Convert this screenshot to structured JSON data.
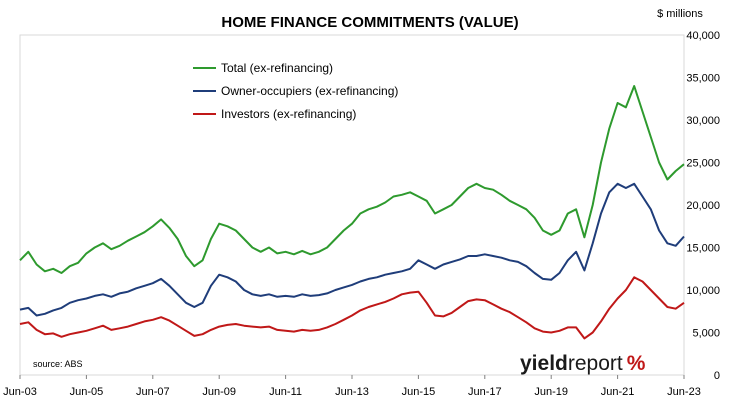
{
  "chart_data": {
    "type": "line",
    "title": "HOME FINANCE COMMITMENTS (VALUE)",
    "units_label": "$ millions",
    "source": "source: ABS",
    "logo": "yieldreport %",
    "ylim": [
      0,
      40000
    ],
    "y_ticks": [
      0,
      5000,
      10000,
      15000,
      20000,
      25000,
      30000,
      35000,
      40000
    ],
    "y_tick_labels": [
      "0",
      "5,000",
      "10,000",
      "15,000",
      "20,000",
      "25,000",
      "30,000",
      "35,000",
      "40,000"
    ],
    "x_ticks": [
      "2003-06",
      "2005-06",
      "2007-06",
      "2009-06",
      "2011-06",
      "2013-06",
      "2015-06",
      "2017-06",
      "2019-06",
      "2021-06",
      "2023-06"
    ],
    "x_tick_labels": [
      "Jun-03",
      "Jun-05",
      "Jun-07",
      "Jun-09",
      "Jun-11",
      "Jun-13",
      "Jun-15",
      "Jun-17",
      "Jun-19",
      "Jun-21",
      "Jun-23"
    ],
    "grid": "none",
    "legend_position": "top-left",
    "series": [
      {
        "name": "Total (ex-refinancing)",
        "color": "#2e9a2e",
        "points": [
          [
            "2003-06",
            13500
          ],
          [
            "2003-09",
            14500
          ],
          [
            "2003-12",
            13000
          ],
          [
            "2004-03",
            12200
          ],
          [
            "2004-06",
            12500
          ],
          [
            "2004-09",
            12000
          ],
          [
            "2004-12",
            12800
          ],
          [
            "2005-03",
            13200
          ],
          [
            "2005-06",
            14300
          ],
          [
            "2005-09",
            15000
          ],
          [
            "2005-12",
            15500
          ],
          [
            "2006-03",
            14800
          ],
          [
            "2006-06",
            15200
          ],
          [
            "2006-09",
            15800
          ],
          [
            "2006-12",
            16300
          ],
          [
            "2007-03",
            16800
          ],
          [
            "2007-06",
            17500
          ],
          [
            "2007-09",
            18300
          ],
          [
            "2007-12",
            17300
          ],
          [
            "2008-03",
            16000
          ],
          [
            "2008-06",
            14000
          ],
          [
            "2008-09",
            12800
          ],
          [
            "2008-12",
            13500
          ],
          [
            "2009-03",
            16000
          ],
          [
            "2009-06",
            17800
          ],
          [
            "2009-09",
            17500
          ],
          [
            "2009-12",
            17000
          ],
          [
            "2010-03",
            16000
          ],
          [
            "2010-06",
            15000
          ],
          [
            "2010-09",
            14500
          ],
          [
            "2010-12",
            15000
          ],
          [
            "2011-03",
            14300
          ],
          [
            "2011-06",
            14500
          ],
          [
            "2011-09",
            14200
          ],
          [
            "2011-12",
            14600
          ],
          [
            "2012-03",
            14200
          ],
          [
            "2012-06",
            14500
          ],
          [
            "2012-09",
            15000
          ],
          [
            "2012-12",
            16000
          ],
          [
            "2013-03",
            17000
          ],
          [
            "2013-06",
            17800
          ],
          [
            "2013-09",
            19000
          ],
          [
            "2013-12",
            19500
          ],
          [
            "2014-03",
            19800
          ],
          [
            "2014-06",
            20300
          ],
          [
            "2014-09",
            21000
          ],
          [
            "2014-12",
            21200
          ],
          [
            "2015-03",
            21500
          ],
          [
            "2015-06",
            21000
          ],
          [
            "2015-09",
            20500
          ],
          [
            "2015-12",
            19000
          ],
          [
            "2016-03",
            19500
          ],
          [
            "2016-06",
            20000
          ],
          [
            "2016-09",
            21000
          ],
          [
            "2016-12",
            22000
          ],
          [
            "2017-03",
            22500
          ],
          [
            "2017-06",
            22000
          ],
          [
            "2017-09",
            21800
          ],
          [
            "2017-12",
            21200
          ],
          [
            "2018-03",
            20500
          ],
          [
            "2018-06",
            20000
          ],
          [
            "2018-09",
            19500
          ],
          [
            "2018-12",
            18500
          ],
          [
            "2019-03",
            17000
          ],
          [
            "2019-06",
            16500
          ],
          [
            "2019-09",
            17000
          ],
          [
            "2019-12",
            19000
          ],
          [
            "2020-03",
            19500
          ],
          [
            "2020-06",
            16200
          ],
          [
            "2020-09",
            20000
          ],
          [
            "2020-12",
            25000
          ],
          [
            "2021-03",
            29000
          ],
          [
            "2021-06",
            32000
          ],
          [
            "2021-09",
            31500
          ],
          [
            "2021-12",
            34000
          ],
          [
            "2022-03",
            31000
          ],
          [
            "2022-06",
            28000
          ],
          [
            "2022-09",
            25000
          ],
          [
            "2022-12",
            23000
          ],
          [
            "2023-03",
            24000
          ],
          [
            "2023-06",
            24800
          ]
        ]
      },
      {
        "name": "Owner-occupiers (ex-refinancing)",
        "color": "#1f3d7a",
        "points": [
          [
            "2003-06",
            7700
          ],
          [
            "2003-09",
            7900
          ],
          [
            "2003-12",
            7000
          ],
          [
            "2004-03",
            7200
          ],
          [
            "2004-06",
            7600
          ],
          [
            "2004-09",
            7900
          ],
          [
            "2004-12",
            8500
          ],
          [
            "2005-03",
            8800
          ],
          [
            "2005-06",
            9000
          ],
          [
            "2005-09",
            9300
          ],
          [
            "2005-12",
            9500
          ],
          [
            "2006-03",
            9200
          ],
          [
            "2006-06",
            9600
          ],
          [
            "2006-09",
            9800
          ],
          [
            "2006-12",
            10200
          ],
          [
            "2007-03",
            10500
          ],
          [
            "2007-06",
            10800
          ],
          [
            "2007-09",
            11300
          ],
          [
            "2007-12",
            10500
          ],
          [
            "2008-03",
            9500
          ],
          [
            "2008-06",
            8500
          ],
          [
            "2008-09",
            8000
          ],
          [
            "2008-12",
            8500
          ],
          [
            "2009-03",
            10500
          ],
          [
            "2009-06",
            11800
          ],
          [
            "2009-09",
            11500
          ],
          [
            "2009-12",
            11000
          ],
          [
            "2010-03",
            10000
          ],
          [
            "2010-06",
            9500
          ],
          [
            "2010-09",
            9300
          ],
          [
            "2010-12",
            9500
          ],
          [
            "2011-03",
            9200
          ],
          [
            "2011-06",
            9300
          ],
          [
            "2011-09",
            9200
          ],
          [
            "2011-12",
            9500
          ],
          [
            "2012-03",
            9300
          ],
          [
            "2012-06",
            9400
          ],
          [
            "2012-09",
            9600
          ],
          [
            "2012-12",
            10000
          ],
          [
            "2013-03",
            10300
          ],
          [
            "2013-06",
            10600
          ],
          [
            "2013-09",
            11000
          ],
          [
            "2013-12",
            11300
          ],
          [
            "2014-03",
            11500
          ],
          [
            "2014-06",
            11800
          ],
          [
            "2014-09",
            12000
          ],
          [
            "2014-12",
            12200
          ],
          [
            "2015-03",
            12500
          ],
          [
            "2015-06",
            13500
          ],
          [
            "2015-09",
            13000
          ],
          [
            "2015-12",
            12500
          ],
          [
            "2016-03",
            13000
          ],
          [
            "2016-06",
            13300
          ],
          [
            "2016-09",
            13600
          ],
          [
            "2016-12",
            14000
          ],
          [
            "2017-03",
            14000
          ],
          [
            "2017-06",
            14200
          ],
          [
            "2017-09",
            14000
          ],
          [
            "2017-12",
            13800
          ],
          [
            "2018-03",
            13500
          ],
          [
            "2018-06",
            13300
          ],
          [
            "2018-09",
            12800
          ],
          [
            "2018-12",
            12000
          ],
          [
            "2019-03",
            11300
          ],
          [
            "2019-06",
            11200
          ],
          [
            "2019-09",
            12000
          ],
          [
            "2019-12",
            13500
          ],
          [
            "2020-03",
            14500
          ],
          [
            "2020-06",
            12300
          ],
          [
            "2020-09",
            15500
          ],
          [
            "2020-12",
            19000
          ],
          [
            "2021-03",
            21500
          ],
          [
            "2021-06",
            22500
          ],
          [
            "2021-09",
            22000
          ],
          [
            "2021-12",
            22500
          ],
          [
            "2022-03",
            21000
          ],
          [
            "2022-06",
            19500
          ],
          [
            "2022-09",
            17000
          ],
          [
            "2022-12",
            15500
          ],
          [
            "2023-03",
            15200
          ],
          [
            "2023-06",
            16300
          ]
        ]
      },
      {
        "name": "Investors (ex-refinancing)",
        "color": "#c01818",
        "points": [
          [
            "2003-06",
            6000
          ],
          [
            "2003-09",
            6200
          ],
          [
            "2003-12",
            5300
          ],
          [
            "2004-03",
            4800
          ],
          [
            "2004-06",
            4900
          ],
          [
            "2004-09",
            4500
          ],
          [
            "2004-12",
            4800
          ],
          [
            "2005-03",
            5000
          ],
          [
            "2005-06",
            5200
          ],
          [
            "2005-09",
            5500
          ],
          [
            "2005-12",
            5800
          ],
          [
            "2006-03",
            5300
          ],
          [
            "2006-06",
            5500
          ],
          [
            "2006-09",
            5700
          ],
          [
            "2006-12",
            6000
          ],
          [
            "2007-03",
            6300
          ],
          [
            "2007-06",
            6500
          ],
          [
            "2007-09",
            6800
          ],
          [
            "2007-12",
            6400
          ],
          [
            "2008-03",
            5800
          ],
          [
            "2008-06",
            5200
          ],
          [
            "2008-09",
            4600
          ],
          [
            "2008-12",
            4800
          ],
          [
            "2009-03",
            5300
          ],
          [
            "2009-06",
            5700
          ],
          [
            "2009-09",
            5900
          ],
          [
            "2009-12",
            6000
          ],
          [
            "2010-03",
            5800
          ],
          [
            "2010-06",
            5700
          ],
          [
            "2010-09",
            5600
          ],
          [
            "2010-12",
            5700
          ],
          [
            "2011-03",
            5300
          ],
          [
            "2011-06",
            5200
          ],
          [
            "2011-09",
            5100
          ],
          [
            "2011-12",
            5300
          ],
          [
            "2012-03",
            5200
          ],
          [
            "2012-06",
            5300
          ],
          [
            "2012-09",
            5600
          ],
          [
            "2012-12",
            6000
          ],
          [
            "2013-03",
            6500
          ],
          [
            "2013-06",
            7000
          ],
          [
            "2013-09",
            7600
          ],
          [
            "2013-12",
            8000
          ],
          [
            "2014-03",
            8300
          ],
          [
            "2014-06",
            8600
          ],
          [
            "2014-09",
            9000
          ],
          [
            "2014-12",
            9500
          ],
          [
            "2015-03",
            9700
          ],
          [
            "2015-06",
            9800
          ],
          [
            "2015-09",
            8500
          ],
          [
            "2015-12",
            7000
          ],
          [
            "2016-03",
            6900
          ],
          [
            "2016-06",
            7300
          ],
          [
            "2016-09",
            8000
          ],
          [
            "2016-12",
            8700
          ],
          [
            "2017-03",
            8900
          ],
          [
            "2017-06",
            8800
          ],
          [
            "2017-09",
            8300
          ],
          [
            "2017-12",
            7800
          ],
          [
            "2018-03",
            7400
          ],
          [
            "2018-06",
            6800
          ],
          [
            "2018-09",
            6200
          ],
          [
            "2018-12",
            5500
          ],
          [
            "2019-03",
            5100
          ],
          [
            "2019-06",
            5000
          ],
          [
            "2019-09",
            5200
          ],
          [
            "2019-12",
            5600
          ],
          [
            "2020-03",
            5600
          ],
          [
            "2020-06",
            4300
          ],
          [
            "2020-09",
            5000
          ],
          [
            "2020-12",
            6300
          ],
          [
            "2021-03",
            7800
          ],
          [
            "2021-06",
            9000
          ],
          [
            "2021-09",
            10000
          ],
          [
            "2021-12",
            11500
          ],
          [
            "2022-03",
            11000
          ],
          [
            "2022-06",
            10000
          ],
          [
            "2022-09",
            9000
          ],
          [
            "2022-12",
            8000
          ],
          [
            "2023-03",
            7800
          ],
          [
            "2023-06",
            8500
          ]
        ]
      }
    ]
  }
}
